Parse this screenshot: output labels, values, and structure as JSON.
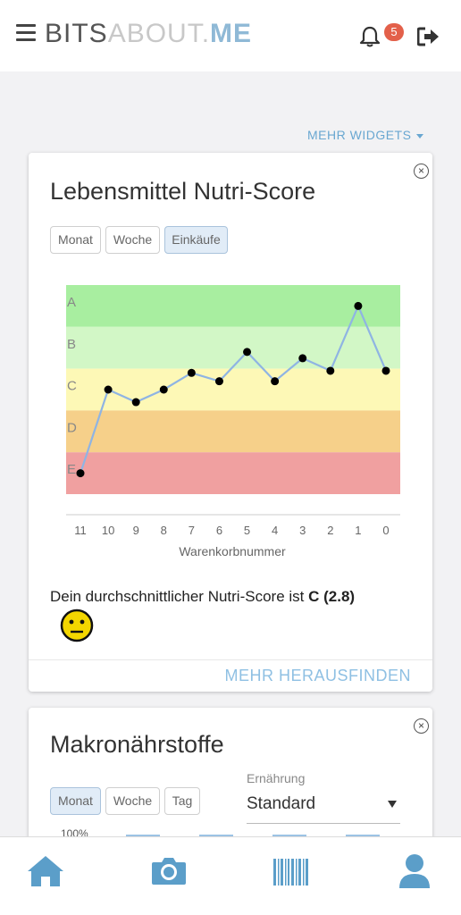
{
  "header": {
    "logo_part1": "BITS",
    "logo_part2": "ABOUT.",
    "logo_part3": "ME",
    "notification_count": "5",
    "icons": [
      "menu-icon",
      "bell-icon",
      "logout-icon"
    ]
  },
  "widgets_menu_label": "MEHR WIDGETS",
  "nutri_card": {
    "title": "Lebensmittel Nutri-Score",
    "tabs": [
      {
        "label": "Monat",
        "active": false
      },
      {
        "label": "Woche",
        "active": false
      },
      {
        "label": "Einkäufe",
        "active": true
      }
    ],
    "summary_text": "Dein durchschnittlicher Nutri-Score ist",
    "summary_value": "C (2.8)",
    "find_more": "MEHR HERAUSFINDEN"
  },
  "chart_data": {
    "type": "line",
    "xlabel": "Warenkorbnummer",
    "x": [
      "11",
      "10",
      "9",
      "8",
      "7",
      "6",
      "5",
      "4",
      "3",
      "2",
      "1",
      "0"
    ],
    "y_bands": [
      "A",
      "B",
      "C",
      "D",
      "E"
    ],
    "y_band_colors": [
      "#a8eea0",
      "#d2f7c6",
      "#fdf8b6",
      "#f6d08a",
      "#f0a0a0"
    ],
    "series": [
      {
        "values": [
          5.0,
          3.0,
          3.3,
          3.0,
          2.6,
          2.8,
          2.1,
          2.8,
          2.25,
          2.55,
          1.0,
          2.55
        ],
        "color": "#8fb4e3"
      }
    ],
    "ylim": [
      0.5,
      5.5
    ]
  },
  "macro_card": {
    "title": "Makronährstoffe",
    "tabs": [
      {
        "label": "Monat",
        "active": true
      },
      {
        "label": "Woche",
        "active": false
      },
      {
        "label": "Tag",
        "active": false
      }
    ],
    "diet_label": "Ernährung",
    "diet_value": "Standard",
    "axis_top_label": "100%"
  },
  "bottom_nav": {
    "items": [
      "home-icon",
      "camera-icon",
      "barcode-icon",
      "user-icon"
    ],
    "color": "#5b9ec9"
  }
}
